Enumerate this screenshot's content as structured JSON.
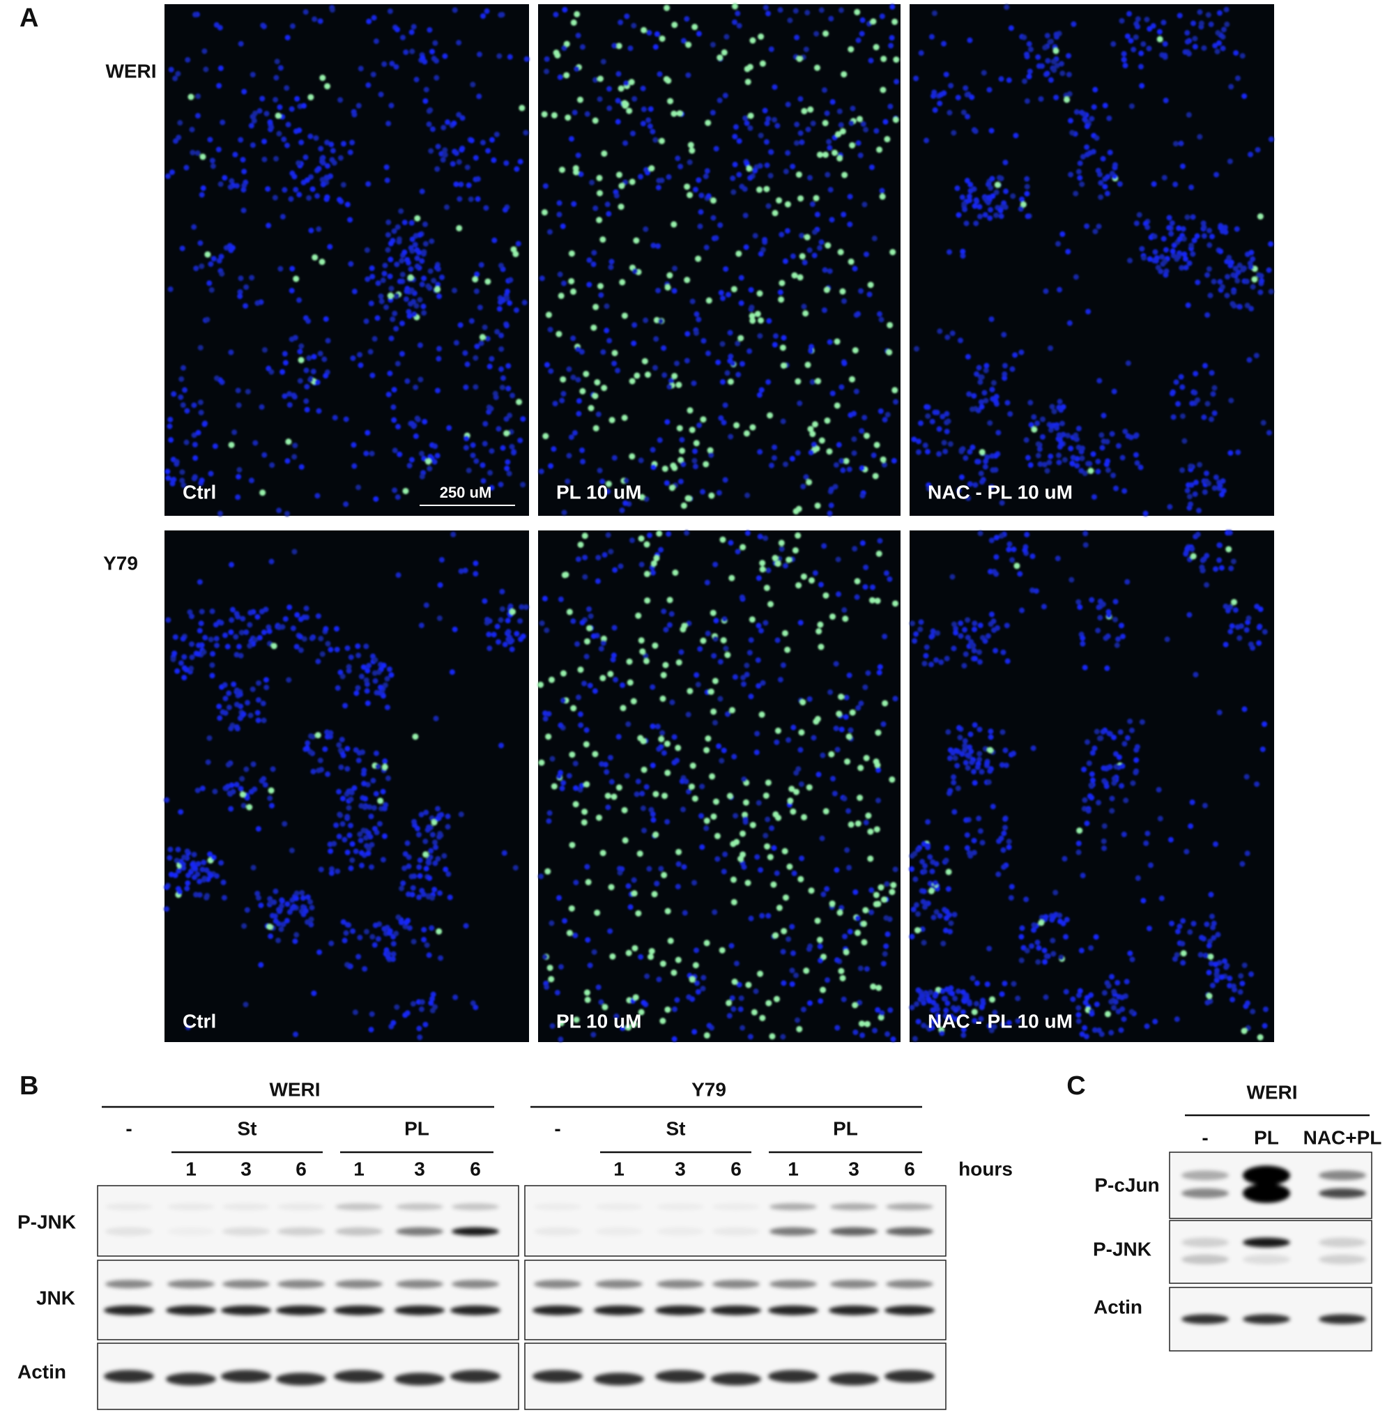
{
  "panel_a": {
    "label": "A",
    "scale_bar": "250 uM",
    "rows": [
      {
        "label": "WERI",
        "images": [
          {
            "caption": "Ctrl"
          },
          {
            "caption": "PL 10 uM"
          },
          {
            "caption": "NAC - PL 10 uM"
          }
        ]
      },
      {
        "label": "Y79",
        "images": [
          {
            "caption": "Ctrl"
          },
          {
            "caption": "PL 10 uM"
          },
          {
            "caption": "NAC - PL 10 uM"
          }
        ]
      }
    ]
  },
  "panel_b": {
    "label": "B",
    "hours_label": "hours",
    "rows": [
      "P-JNK",
      "JNK",
      "Actin"
    ],
    "groups": [
      {
        "name": "WERI",
        "treatments": [
          "-",
          "St",
          "PL"
        ],
        "hours": [
          "1",
          "3",
          "6",
          "1",
          "3",
          "6"
        ]
      },
      {
        "name": "Y79",
        "treatments": [
          "-",
          "St",
          "PL"
        ],
        "hours": [
          "1",
          "3",
          "6",
          "1",
          "3",
          "6"
        ]
      }
    ]
  },
  "panel_c": {
    "label": "C",
    "group": "WERI",
    "lanes": [
      "-",
      "PL",
      "NAC+PL"
    ],
    "rows": [
      "P-cJun",
      "P-JNK",
      "Actin"
    ]
  }
}
